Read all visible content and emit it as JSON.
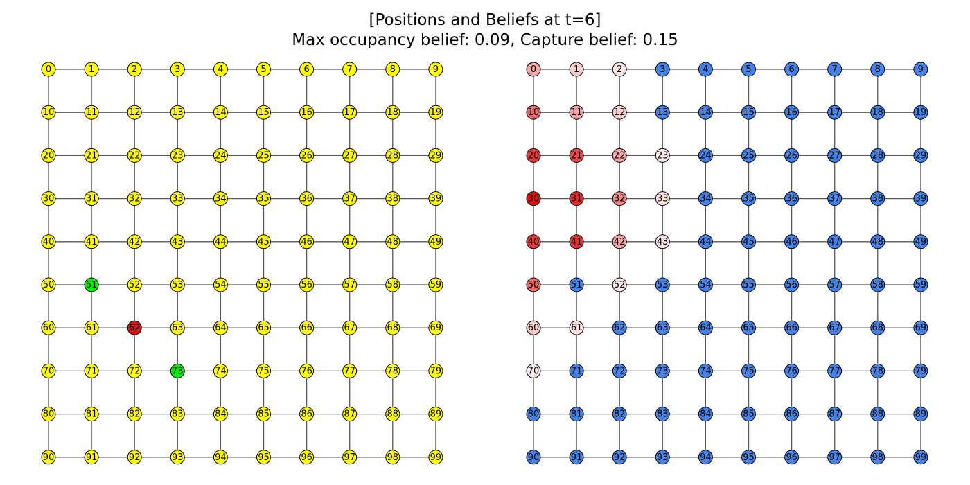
{
  "title": {
    "line1": "[Positions and Beliefs at t=6]",
    "line2": "Max occupancy belief: 0.09, Capture belief: 0.15"
  },
  "graph": {
    "rows": 10,
    "cols": 10
  },
  "positions_panel": {
    "default_color": "#ffff00",
    "highlights": [
      {
        "node": 51,
        "color": "#00ee00",
        "role": "searcher"
      },
      {
        "node": 73,
        "color": "#00ee00",
        "role": "searcher"
      },
      {
        "node": 62,
        "color": "#dd1111",
        "role": "target"
      }
    ]
  },
  "beliefs_panel": {
    "default_color": "#4682e6",
    "node_colors": {
      "0": "#f0a8a8",
      "1": "#f6cbcb",
      "2": "#fbe4e4",
      "10": "#e66a6a",
      "11": "#f0a4a4",
      "12": "#f7cfcf",
      "20": "#e23c3c",
      "21": "#e84c4c",
      "22": "#f0a4a4",
      "23": "#fce8e8",
      "30": "#e01010",
      "31": "#e42a2a",
      "32": "#ec8585",
      "33": "#fbe0e0",
      "40": "#e23c3c",
      "41": "#e43434",
      "42": "#f0a4a4",
      "43": "#fbe4e4",
      "50": "#e66a6a",
      "52": "#fce8e8",
      "60": "#f6cbcb",
      "61": "#fae0e0",
      "70": "#fceaea"
    }
  }
}
